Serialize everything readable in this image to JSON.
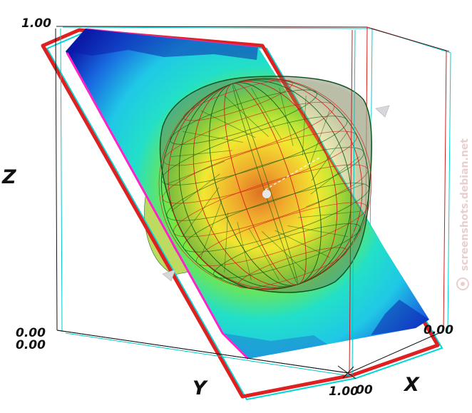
{
  "axes": {
    "x_label": "X",
    "y_label": "Y",
    "z_label": "Z"
  },
  "ticks": {
    "z_top": "1.00",
    "origin_top": "0.00",
    "origin_bottom": "0.00",
    "x_right": "0.00",
    "bottom_center": "1.00",
    "bottom_center_overlap": "00"
  },
  "watermark": {
    "text": "screenshots.debian.net"
  },
  "colors": {
    "frame_red": "#e02020",
    "frame_cyan": "#00d8d8",
    "mesh_green": "#0a5a12",
    "mesh_red": "#d01818",
    "plane_edge_blue": "#0a1aa8",
    "plane_mid_cyan": "#1ee0e0",
    "core_orange": "#e05820",
    "outline_magenta": "#ff22cc"
  }
}
